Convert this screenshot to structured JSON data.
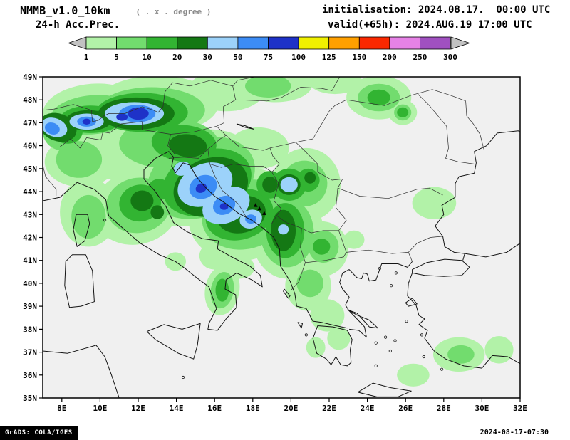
{
  "header": {
    "model_title": "NMMB_v1.0_10km",
    "grid_note": "( . x . degree )",
    "product_label": "24-h Acc.Prec.",
    "init_line": "initialisation: 2024.08.17.  00:00 UTC",
    "valid_line": "valid(+65h): 2024.AUG.19 17:00 UTC"
  },
  "colorbar": {
    "tick_labels": [
      "1",
      "5",
      "10",
      "20",
      "30",
      "50",
      "75",
      "100",
      "125",
      "150",
      "200",
      "250",
      "300"
    ],
    "segments": [
      {
        "color": "#c2c2c2",
        "shape": "arrow-left"
      },
      {
        "color": "#b2f2a8"
      },
      {
        "color": "#72dc6e"
      },
      {
        "color": "#32b432"
      },
      {
        "color": "#147814"
      },
      {
        "color": "#9cd2fa"
      },
      {
        "color": "#3c8cf5"
      },
      {
        "color": "#1e32c8"
      },
      {
        "color": "#f0f000"
      },
      {
        "color": "#ffa000"
      },
      {
        "color": "#fa2800"
      },
      {
        "color": "#e682e6"
      },
      {
        "color": "#a050c0"
      },
      {
        "color": "#c2c2c2",
        "shape": "arrow-right"
      }
    ]
  },
  "map": {
    "lat_tick_labels": [
      "49N",
      "48N",
      "47N",
      "46N",
      "45N",
      "44N",
      "43N",
      "42N",
      "41N",
      "40N",
      "39N",
      "38N",
      "37N",
      "36N",
      "35N"
    ],
    "lon_tick_labels": [
      "8E",
      "10E",
      "12E",
      "14E",
      "16E",
      "18E",
      "20E",
      "22E",
      "24E",
      "26E",
      "28E",
      "30E",
      "32E"
    ],
    "lon_range": [
      7,
      32
    ],
    "lat_range": [
      35,
      49
    ],
    "background": "#f0f0f0",
    "precip_blobs": [
      [
        1,
        9.6,
        47.55,
        2.6,
        1.15,
        -5
      ],
      [
        1,
        13.0,
        47.8,
        3.2,
        1.25,
        0
      ],
      [
        1,
        16.6,
        48.4,
        2.0,
        0.9,
        0
      ],
      [
        1,
        19.2,
        48.65,
        1.9,
        0.75,
        0
      ],
      [
        1,
        22.3,
        48.85,
        1.4,
        0.6,
        0
      ],
      [
        1,
        12.4,
        45.9,
        3.6,
        1.6,
        0
      ],
      [
        1,
        9.0,
        45.3,
        1.9,
        1.1,
        0
      ],
      [
        1,
        9.4,
        43.1,
        1.5,
        1.5,
        0
      ],
      [
        1,
        11.9,
        43.3,
        2.3,
        1.6,
        -15
      ],
      [
        1,
        15.0,
        44.6,
        3.4,
        2.0,
        -20
      ],
      [
        1,
        17.5,
        43.0,
        2.9,
        2.0,
        -15
      ],
      [
        1,
        19.8,
        42.2,
        1.9,
        2.0,
        0
      ],
      [
        1,
        20.8,
        44.3,
        1.8,
        1.6,
        0
      ],
      [
        1,
        18.3,
        45.9,
        1.6,
        0.9,
        0
      ],
      [
        1,
        21.6,
        41.5,
        1.4,
        1.2,
        0
      ],
      [
        1,
        20.9,
        39.9,
        1.2,
        1.1,
        0
      ],
      [
        1,
        21.9,
        38.6,
        0.9,
        0.7,
        0
      ],
      [
        1,
        22.5,
        37.6,
        0.6,
        0.5,
        0
      ],
      [
        1,
        21.3,
        37.2,
        0.5,
        0.45,
        0
      ],
      [
        1,
        16.4,
        39.7,
        0.9,
        1.1,
        10
      ],
      [
        1,
        16.0,
        41.2,
        0.8,
        0.6,
        0
      ],
      [
        1,
        17.3,
        40.7,
        0.8,
        0.5,
        0
      ],
      [
        1,
        13.95,
        40.95,
        0.55,
        0.4,
        0
      ],
      [
        1,
        24.6,
        48.1,
        1.7,
        0.95,
        0
      ],
      [
        1,
        25.85,
        47.45,
        0.75,
        0.55,
        0
      ],
      [
        1,
        27.5,
        43.5,
        1.15,
        0.7,
        0
      ],
      [
        1,
        23.3,
        41.9,
        0.55,
        0.4,
        0
      ],
      [
        1,
        28.8,
        36.9,
        1.35,
        0.75,
        0
      ],
      [
        1,
        26.4,
        36.0,
        0.85,
        0.5,
        0
      ],
      [
        1,
        30.9,
        37.1,
        0.75,
        0.6,
        0
      ],
      [
        2,
        9.6,
        47.35,
        2.2,
        0.85,
        -5
      ],
      [
        2,
        12.7,
        47.55,
        2.8,
        1.0,
        0
      ],
      [
        2,
        13.6,
        46.1,
        2.6,
        1.1,
        0
      ],
      [
        2,
        8.0,
        46.6,
        1.0,
        0.8,
        15
      ],
      [
        2,
        15.3,
        44.6,
        2.9,
        1.7,
        -20
      ],
      [
        2,
        17.6,
        43.0,
        2.3,
        1.5,
        -15
      ],
      [
        2,
        12.0,
        43.4,
        1.7,
        1.2,
        -10
      ],
      [
        2,
        8.9,
        45.4,
        1.2,
        0.8,
        0
      ],
      [
        2,
        9.4,
        42.9,
        0.9,
        0.95,
        0
      ],
      [
        2,
        19.8,
        42.2,
        1.4,
        1.5,
        0
      ],
      [
        2,
        20.7,
        44.35,
        1.2,
        1.0,
        0
      ],
      [
        2,
        16.4,
        39.7,
        0.6,
        0.8,
        10
      ],
      [
        2,
        24.6,
        48.1,
        1.1,
        0.6,
        0
      ],
      [
        2,
        21.0,
        40.0,
        0.7,
        0.6,
        0
      ],
      [
        2,
        21.7,
        41.6,
        0.8,
        0.7,
        0
      ],
      [
        2,
        18.8,
        48.6,
        1.2,
        0.5,
        0
      ],
      [
        2,
        28.9,
        36.9,
        0.7,
        0.4,
        0
      ],
      [
        2,
        25.85,
        47.45,
        0.45,
        0.35,
        0
      ],
      [
        3,
        12.2,
        47.45,
        2.4,
        0.85,
        0
      ],
      [
        3,
        9.5,
        47.15,
        1.6,
        0.6,
        0
      ],
      [
        3,
        8.2,
        46.7,
        0.9,
        0.6,
        15
      ],
      [
        3,
        14.4,
        46.1,
        1.7,
        0.8,
        5
      ],
      [
        3,
        15.6,
        44.4,
        2.4,
        1.4,
        -20
      ],
      [
        3,
        17.3,
        43.0,
        1.8,
        1.1,
        -15
      ],
      [
        3,
        12.1,
        43.5,
        1.1,
        0.8,
        -10
      ],
      [
        3,
        19.7,
        42.3,
        1.0,
        1.2,
        0
      ],
      [
        3,
        19.9,
        44.3,
        0.9,
        0.7,
        0
      ],
      [
        3,
        20.9,
        44.5,
        0.6,
        0.5,
        0
      ],
      [
        3,
        16.4,
        39.7,
        0.35,
        0.5,
        0
      ],
      [
        3,
        24.6,
        48.1,
        0.6,
        0.35,
        0
      ],
      [
        3,
        25.85,
        47.45,
        0.3,
        0.22,
        0
      ],
      [
        3,
        13.1,
        44.1,
        0.6,
        0.45,
        0
      ],
      [
        3,
        18.9,
        44.3,
        0.7,
        0.6,
        0
      ],
      [
        3,
        21.6,
        41.6,
        0.45,
        0.35,
        0
      ],
      [
        4,
        11.9,
        47.4,
        2.0,
        0.7,
        0
      ],
      [
        4,
        9.4,
        47.1,
        1.2,
        0.45,
        0
      ],
      [
        4,
        7.8,
        46.8,
        1.0,
        0.6,
        20
      ],
      [
        4,
        15.8,
        44.2,
        2.0,
        1.25,
        -20
      ],
      [
        4,
        17.4,
        43.0,
        1.3,
        0.8,
        -15
      ],
      [
        4,
        14.6,
        46.0,
        1.0,
        0.5,
        5
      ],
      [
        4,
        19.6,
        42.3,
        0.65,
        0.9,
        0
      ],
      [
        4,
        19.9,
        44.3,
        0.6,
        0.45,
        0
      ],
      [
        4,
        12.2,
        43.6,
        0.6,
        0.45,
        0
      ],
      [
        4,
        13.0,
        43.1,
        0.35,
        0.3,
        0
      ],
      [
        4,
        18.9,
        44.3,
        0.4,
        0.35,
        0
      ],
      [
        4,
        21.0,
        44.6,
        0.3,
        0.25,
        0
      ],
      [
        5,
        11.8,
        47.4,
        1.55,
        0.5,
        0
      ],
      [
        5,
        9.3,
        47.05,
        0.9,
        0.35,
        0
      ],
      [
        5,
        7.6,
        46.8,
        0.7,
        0.4,
        20
      ],
      [
        5,
        15.5,
        44.3,
        1.5,
        0.9,
        -25
      ],
      [
        5,
        16.6,
        43.4,
        1.3,
        0.75,
        -25
      ],
      [
        5,
        17.9,
        42.8,
        0.6,
        0.4,
        -20
      ],
      [
        5,
        19.9,
        44.3,
        0.45,
        0.33,
        0
      ],
      [
        5,
        14.3,
        45.0,
        0.45,
        0.3,
        -20
      ],
      [
        5,
        19.6,
        42.35,
        0.28,
        0.22,
        0
      ],
      [
        6,
        11.95,
        47.4,
        0.95,
        0.38,
        0
      ],
      [
        6,
        9.3,
        47.05,
        0.5,
        0.22,
        0
      ],
      [
        6,
        7.5,
        46.75,
        0.4,
        0.25,
        20
      ],
      [
        6,
        15.4,
        44.2,
        0.75,
        0.5,
        -25
      ],
      [
        6,
        16.5,
        43.4,
        0.6,
        0.4,
        -25
      ],
      [
        6,
        17.9,
        42.8,
        0.3,
        0.2,
        0
      ],
      [
        7,
        12.0,
        47.4,
        0.55,
        0.27,
        0
      ],
      [
        7,
        11.15,
        47.25,
        0.3,
        0.16,
        0
      ],
      [
        7,
        9.3,
        47.05,
        0.22,
        0.13,
        0
      ],
      [
        7,
        15.3,
        44.15,
        0.3,
        0.2,
        -25
      ],
      [
        7,
        16.5,
        43.35,
        0.22,
        0.15,
        0
      ]
    ],
    "markers": [
      [
        18.35,
        43.25
      ],
      [
        18.6,
        43.05
      ],
      [
        18.15,
        43.4
      ]
    ],
    "basemap": {
      "coastlines": [
        "7,43.6 7.9,43.75 8.8,44.4 9.7,44.1 10.3,43.65 10.45,42.95 11.2,42.4 12.1,41.75 13.1,41.25 13.95,40.95 14.45,40.65 15.05,40.25 15.7,39.85 16.1,38.9 15.7,38.25 15.65,38.0 16.15,37.95 16.6,38.45 17.15,38.95 17.1,39.5 16.55,39.75 16.6,40.15 17.15,40.45 17.95,40.15 18.5,39.85 18.4,40.35 17.85,40.75 16.9,41.15 16.15,41.5 16.2,41.85 15.35,41.95 14.55,42.25 13.85,42.65 13.45,43.35 12.85,44.05 12.3,44.55 12.3,44.95 12.9,45.45 13.6,45.75",
        "13.6,45.75 13.85,45.5 13.75,45.1 13.95,44.82 14.35,45.25 14.7,45.15 15.05,44.65 15.5,44.2 16.0,43.8 16.55,43.5 17.25,43.05 17.95,42.75 18.55,42.4 19.1,42.0 19.4,41.5 19.45,40.75 19.95,40.1 20.2,39.55 20.3,39.0 20.8,38.9 21.15,38.35 21.6,38.3 22.35,38.15 22.95,38.05",
        "22.95,37.95 22.2,38.1 21.4,38.15 21.15,37.6 21.35,36.95 21.85,36.7 22.1,36.45 22.35,36.8 22.6,36.45 22.95,36.4 23.15,36.55 23.1,37.1 23.2,37.55 22.95,37.95",
        "23.05,38.0 23.55,37.95 23.95,37.65 23.85,38.1 23.4,38.5 23.05,38.8 22.85,39.05 23.05,39.4 22.7,39.75 22.55,40.05 22.7,40.45 23.05,40.6 23.45,40.25 23.7,40.2 23.8,40.45 24.0,40.4 24.1,40.1 24.45,40.15 24.75,40.85 25.6,40.85 26.1,40.7 26.35,40.95",
        "26.35,40.45 27.0,40.35 28.0,40.3 28.95,40.35 29.35,40.7 28.95,41.0 28.05,41.05 27.1,40.9 26.35,40.6 26.35,40.45",
        "26.15,40.0 26.35,40.45",
        "29.0,41.0 29.1,41.3",
        "26.15,40.0 26.1,39.45 26.55,39.05 26.7,38.6 27.0,38.45 26.7,38.2 27.15,37.95 27.0,37.6 27.5,37.05 28.1,36.7 29.05,36.4 30.0,36.3 30.55,36.85 31.35,36.8 32,36.5",
        "29.1,41.3 28.55,41.35 28.05,41.6 27.95,42.05 27.55,42.5 28.0,43.0 27.9,43.4 28.6,43.75 28.6,44.35 28.8,44.65 29.6,44.8 29.7,45.25 29.6,45.75 30.25,46.0 30.8,46.55 31.9,46.65 32,46.6",
        "29.1,41.3 30.2,41.15 31.3,41.35 32,41.75",
        "7,37.05 8.3,36.95 9.8,37.3 10.25,36.8 10.6,36.0 11.0,35.0",
        "8.6,42.35 8.75,43.0 9.35,43.0 9.45,42.6 9.2,41.85 8.8,41.6 8.6,42.35",
        "8.2,40.95 8.55,41.25 9.25,41.25 9.6,40.55 9.7,39.2 9.0,39.0 8.4,38.95 8.15,39.9 8.2,40.95",
        "12.45,37.9 13.35,38.2 14.3,38.0 15.25,38.25 15.1,37.3 14.9,36.7 14.1,36.95 12.9,37.55 12.45,37.9",
        "23.5,35.25 24.3,35.65 25.2,35.45 26.3,35.3 25.6,35.05 24.5,35.05 23.5,35.25",
        "22.95,38.85 23.5,38.6 24.1,38.4 24.55,38.05 24.1,38.1 23.45,38.7 22.95,38.85",
        "19.65,39.75 19.95,39.45 19.85,39.35 19.6,39.65 19.65,39.75",
        "20.35,38.3 20.6,38.25 20.55,38.05 20.35,38.3",
        "26.0,39.15 26.35,39.35 26.6,39.1 26.15,39.0 26.0,39.15",
        "17.15,46.95 17.6,46.87 18.05,46.72 17.6,46.8 17.15,46.95"
      ],
      "borders": [
        "7,45.15 7.15,44.65 7.7,44.1 7.7,43.82",
        "7.9,45.95 8.45,46.3 8.95,45.9 9.3,46.35 10.05,46.25 10.15,46.6 10.5,46.55 11.1,46.95 12.2,47.05 12.2,46.7 13.7,46.5",
        "13.7,46.5 13.55,46.0 13.9,45.65",
        "13.7,46.5 14.9,46.6 16.1,46.85",
        "7,47.55 7.6,47.6 8.6,47.8 9.55,47.55 9.6,47.05",
        "9.6,47.05 9.9,47.1 10.2,47.3 10.45,47.4 11.3,47.4 12.2,47.7 12.8,47.55 13.05,47.45 13.3,47.7 13.4,48.35 13.8,48.75",
        "13.8,48.75 14.7,48.6 15.8,48.85 16.95,48.6 17.2,48.85 18.1,49.0",
        "16.95,48.6 17.1,48.0 16.45,47.7 16.5,47.0 16.1,46.85",
        "16.1,46.85 16.6,46.45 17.3,45.95 18.55,45.8 18.9,45.9",
        "17.1,48.0 18.75,47.95 19.5,48.1 20.5,48.55 21.6,48.5 22.15,48.4 22.55,49.0",
        "18.9,45.9 20.25,46.15",
        "20.25,46.15 21.15,46.3 22.0,47.5 22.3,47.75 22.9,48.0",
        "22.9,48.0 24.9,47.75 26.3,48.2 27.4,48.45",
        "26.65,48.25 27.25,47.75 28.15,46.85 28.25,45.9 28.1,45.45 28.75,45.3 29.6,45.2",
        "27.4,48.45 28.35,48.2 29.15,47.95 29.2,47.3 29.55,46.95 29.9,46.5 30.1,45.85",
        "20.25,46.15 20.75,45.75 21.4,45.2 21.4,44.85 22.15,44.5 22.7,44.55 22.45,44.15",
        "22.45,44.15 23.6,43.8 25.1,43.7 26.6,44.1 27.25,44.15 27.95,43.85",
        "22.45,44.15 22.35,43.3 22.9,42.75 22.5,42.3",
        "19.0,44.85 19.35,44.35 19.1,43.6 19.5,43.25 19.25,42.95",
        "19.25,42.95 19.75,42.65 20.1,42.55 20.55,42.4 21.05,42.2 21.7,42.3 22.5,42.3",
        "19.25,42.95 18.95,42.55",
        "20.55,42.4 20.5,41.55 20.75,40.9 20.4,40.05 20.0,39.7",
        "20.75,40.9 21.8,41.0 22.75,41.15 22.9,41.35",
        "22.5,42.3 22.9,41.35",
        "22.9,41.35 24.05,41.45 25.3,41.3 26.15,41.35",
        "26.15,41.35 26.6,41.75 27.3,42.0 27.95,42.05",
        "26.15,41.35 26.35,40.95",
        "15.75,45.2 16.35,45.05 17.0,45.2 17.85,45.1 18.55,45.1 19.0,44.85",
        "15.75,45.2 16.0,44.7 16.4,44.05 17.25,43.45 17.65,42.9",
        "13.6,45.45 14.35,45.5 15.15,45.45 15.65,45.85 16.3,46.3 16.6,46.45",
        "18.9,45.9 19.05,45.55 19.4,45.2 19.0,44.85",
        "15.65,45.85 15.75,45.2"
      ],
      "island_dots": [
        [
          26.05,
          38.35
        ],
        [
          26.85,
          37.75
        ],
        [
          27.9,
          36.25
        ],
        [
          24.45,
          37.4
        ],
        [
          25.2,
          37.05
        ],
        [
          25.45,
          37.5
        ],
        [
          24.95,
          37.65
        ],
        [
          25.25,
          39.9
        ],
        [
          24.65,
          40.65
        ],
        [
          25.5,
          40.45
        ],
        [
          20.8,
          37.75
        ],
        [
          14.35,
          35.9
        ],
        [
          24.45,
          36.4
        ],
        [
          26.95,
          36.8
        ],
        [
          10.25,
          42.75
        ]
      ]
    }
  },
  "footer": {
    "credit": "GrADS: COLA/IGES",
    "timestamp": "2024-08-17-07:30"
  }
}
